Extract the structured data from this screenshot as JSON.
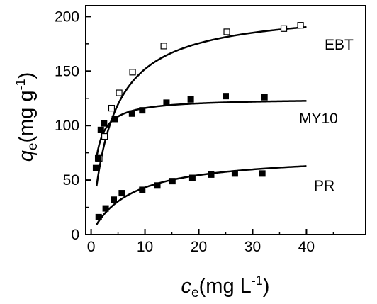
{
  "chart_data": {
    "type": "scatter",
    "xlabel": {
      "main": "c",
      "sub": "e",
      "unit_pre": "(mg L",
      "sup": "-1",
      "unit_post": ")"
    },
    "ylabel": {
      "main": "q",
      "sub": "e",
      "unit_pre": "(mg g",
      "sup": "-1",
      "unit_post": ")"
    },
    "xlim": [
      -1,
      51
    ],
    "ylim": [
      0,
      210
    ],
    "xticks": [
      "0",
      "10",
      "20",
      "30",
      "40"
    ],
    "xtick_values": [
      0,
      10,
      20,
      30,
      40
    ],
    "yticks": [
      "0",
      "50",
      "100",
      "150",
      "200"
    ],
    "ytick_values": [
      0,
      50,
      100,
      150,
      200
    ],
    "series": [
      {
        "name": "EBT",
        "marker": "open-square",
        "points": [
          [
            1.5,
            70
          ],
          [
            2.5,
            90
          ],
          [
            3.8,
            116
          ],
          [
            5.2,
            130
          ],
          [
            7.7,
            149
          ],
          [
            13.5,
            173
          ],
          [
            25.2,
            186
          ],
          [
            35.8,
            189
          ],
          [
            38.9,
            192
          ]
        ],
        "fit": {
          "model": "langmuir",
          "qmax": 208,
          "kl": 0.27,
          "x_start": 1,
          "x_end": 40
        }
      },
      {
        "name": "MY10",
        "marker": "filled-square",
        "points": [
          [
            0.9,
            61
          ],
          [
            1.3,
            70
          ],
          [
            1.8,
            96
          ],
          [
            2.4,
            102
          ],
          [
            4.4,
            106
          ],
          [
            7.6,
            111
          ],
          [
            9.5,
            114
          ],
          [
            14,
            121
          ],
          [
            18.5,
            124
          ],
          [
            25,
            127
          ],
          [
            32.2,
            126
          ]
        ],
        "fit": {
          "model": "langmuir",
          "qmax": 125,
          "kl": 1.3,
          "x_start": 1,
          "x_end": 40
        }
      },
      {
        "name": "PR",
        "marker": "filled-square",
        "points": [
          [
            1.4,
            16
          ],
          [
            2.7,
            24
          ],
          [
            4.2,
            32
          ],
          [
            5.7,
            38
          ],
          [
            9.5,
            41
          ],
          [
            12.3,
            45
          ],
          [
            15.1,
            49
          ],
          [
            18.8,
            52
          ],
          [
            22.3,
            55
          ],
          [
            26.7,
            56
          ],
          [
            31.8,
            56
          ]
        ],
        "fit": {
          "model": "langmuir",
          "qmax": 74,
          "kl": 0.14,
          "x_start": 1,
          "x_end": 40
        }
      }
    ]
  }
}
